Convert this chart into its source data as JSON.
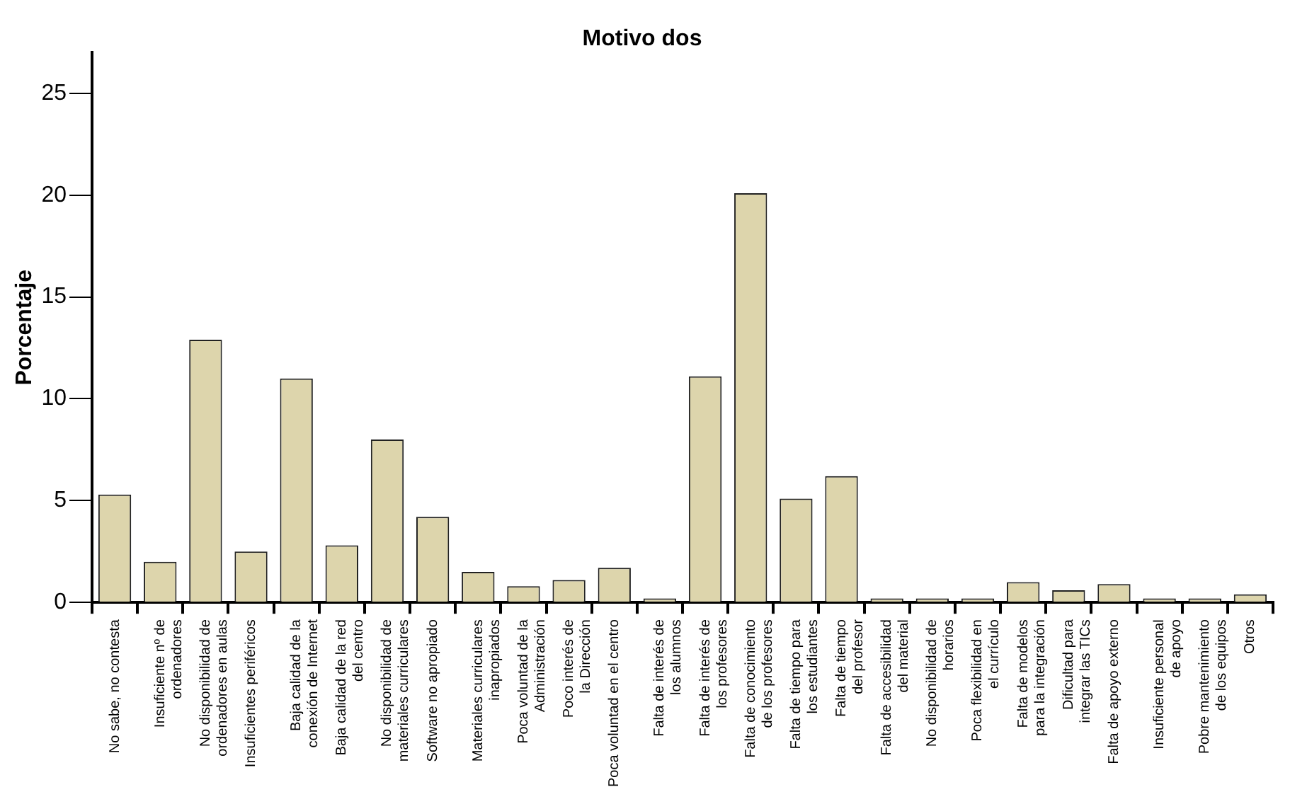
{
  "chart_data": {
    "type": "bar",
    "title": "Motivo dos",
    "ylabel": "Porcentaje",
    "categories": [
      "No sabe, no contesta",
      "Insuficiente nº de\nordenadores",
      "No disponibilidad de\nordenadores en aulas",
      "Insuficientes periféricos",
      "Baja calidad de la\nconexión de Internet",
      "Baja calidad de la red\ndel centro",
      "No disponibilidad de\nmateriales curriculares",
      "Software no apropiado",
      "Materiales curriculares\ninapropiados",
      "Poca voluntad de la\nAdministración",
      "Poco interés de\nla Dirección",
      "Poca voluntad en el centro",
      "Falta de interés de\nlos alumnos",
      "Falta de interés de\nlos profesores",
      "Falta de conocimiento\nde los profesores",
      "Falta de tiempo para\nlos estudiantes",
      "Falta de tiempo\ndel profesor",
      "Falta de accesibilidad\ndel material",
      "No disponibilidad de\nhorarios",
      "Poca flexibilidad en\nel currículo",
      "Falta de modelos\npara la integración",
      "Dificultad para\nintegrar las TICs",
      "Falta de apoyo externo",
      "Insuficiente personal\nde apoyo",
      "Pobre mantenimiento\nde los equipos",
      "Otros"
    ],
    "values": [
      5.3,
      2.0,
      12.9,
      2.5,
      11.0,
      2.8,
      8.0,
      4.2,
      1.5,
      0.8,
      1.1,
      1.7,
      0.2,
      11.1,
      20.1,
      5.1,
      6.2,
      0.2,
      0.2,
      0.2,
      1.0,
      0.6,
      0.9,
      0.2,
      0.2,
      0.4
    ],
    "color": "#ddd5ac",
    "ylim": [
      0,
      27
    ],
    "yticks": [
      0,
      5,
      10,
      15,
      20,
      25
    ],
    "grid": false,
    "legend": false
  }
}
